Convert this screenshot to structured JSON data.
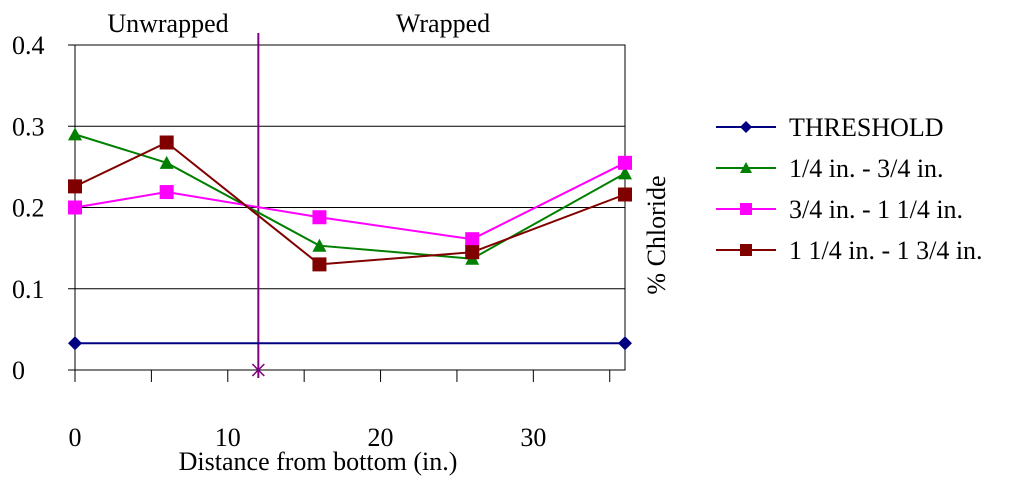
{
  "chart_data": {
    "type": "line",
    "xlabel": "Distance from bottom (in.)",
    "ylabel": "% Chloride",
    "xlim": [
      0,
      36
    ],
    "ylim": [
      0,
      0.4
    ],
    "xticks": [
      "0",
      "10",
      "20",
      "30"
    ],
    "yticks": [
      "0",
      "0.1",
      "0.2",
      "0.3",
      "0.4"
    ],
    "grid": "horizontal",
    "legend_position": "right",
    "region_labels": [
      "Unwrapped",
      "Wrapped"
    ],
    "divider_x": 12,
    "series": [
      {
        "name": "THRESHOLD",
        "color": "#000080",
        "marker": "diamond",
        "x": [
          0,
          36
        ],
        "y": [
          0.033,
          0.033
        ]
      },
      {
        "name": "1/4 in. - 3/4 in.",
        "color": "#008000",
        "marker": "triangle",
        "x": [
          0,
          6,
          16,
          26,
          36
        ],
        "y": [
          0.29,
          0.255,
          0.153,
          0.137,
          0.242
        ]
      },
      {
        "name": "3/4 in. - 1 1/4 in.",
        "color": "#ff00ff",
        "marker": "square",
        "x": [
          0,
          6,
          16,
          26,
          36
        ],
        "y": [
          0.2,
          0.219,
          0.188,
          0.161,
          0.255
        ]
      },
      {
        "name": "1 1/4 in. - 1 3/4 in.",
        "color": "#800000",
        "marker": "square",
        "x": [
          0,
          6,
          16,
          26,
          36
        ],
        "y": [
          0.226,
          0.28,
          0.13,
          0.145,
          0.216
        ]
      }
    ]
  }
}
